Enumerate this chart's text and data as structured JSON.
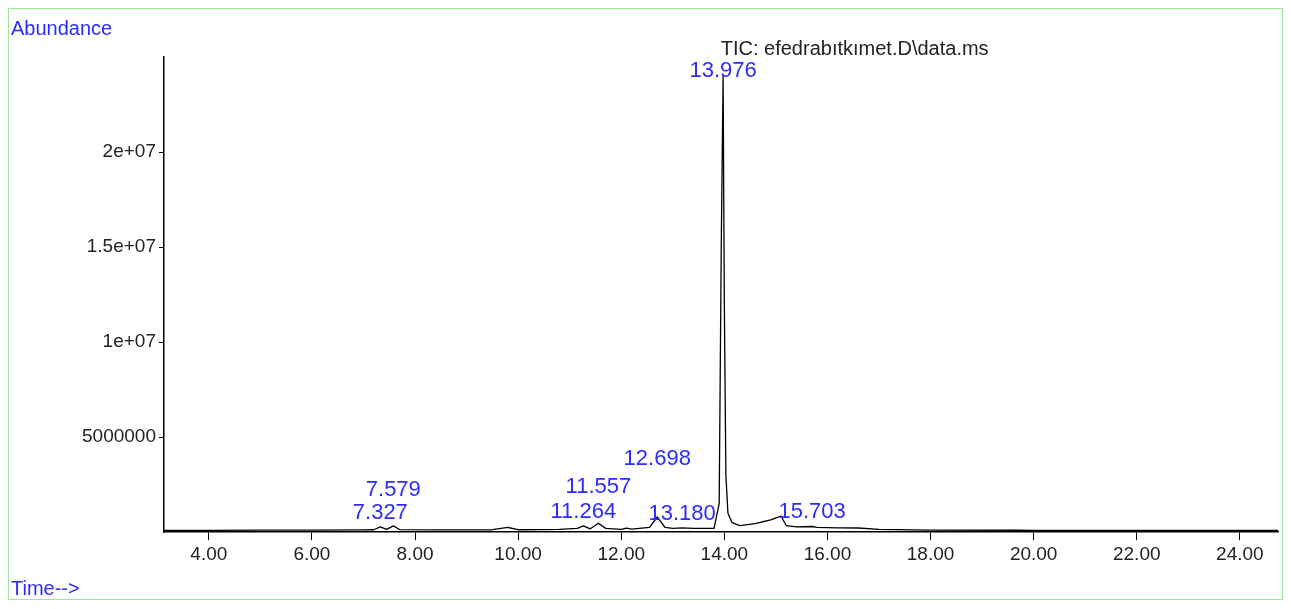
{
  "chart_data": {
    "type": "line",
    "title": "TIC: efedrabıtkımet.D\\data.ms",
    "xlabel": "Time-->",
    "ylabel": "Abundance",
    "x": [
      3.13,
      4.0,
      5.0,
      6.0,
      7.0,
      7.2,
      7.327,
      7.45,
      7.579,
      7.7,
      8.5,
      9.5,
      9.8,
      10.0,
      10.8,
      11.15,
      11.264,
      11.4,
      11.557,
      11.7,
      12.0,
      12.1,
      12.2,
      12.55,
      12.698,
      12.85,
      13.0,
      13.18,
      13.4,
      13.8,
      13.9,
      13.94,
      13.976,
      14.0,
      14.03,
      14.07,
      14.15,
      14.3,
      14.6,
      14.9,
      15.1,
      15.2,
      15.4,
      15.703,
      15.8,
      16.2,
      16.6,
      17.0,
      18.0,
      20.0,
      22.0,
      24.0,
      24.74
    ],
    "series": [
      {
        "color": "#000000",
        "values": [
          100000,
          100000,
          110000,
          110000,
          120000,
          130000,
          280000,
          150000,
          330000,
          140000,
          120000,
          130000,
          250000,
          130000,
          150000,
          200000,
          330000,
          180000,
          470000,
          200000,
          150000,
          220000,
          160000,
          250000,
          800000,
          250000,
          200000,
          230000,
          200000,
          200000,
          1500000,
          15000000,
          24000000,
          12000000,
          3000000,
          1000000,
          500000,
          350000,
          450000,
          650000,
          850000,
          350000,
          280000,
          300000,
          250000,
          230000,
          220000,
          150000,
          110000,
          100000,
          100000,
          100000,
          100000
        ]
      }
    ],
    "xlim": [
      3.13,
      24.74
    ],
    "ylim": [
      0,
      25000000
    ],
    "xticks": [
      {
        "value": 4,
        "label": "4.00"
      },
      {
        "value": 6,
        "label": "6.00"
      },
      {
        "value": 8,
        "label": "8.00"
      },
      {
        "value": 10,
        "label": "10.00"
      },
      {
        "value": 12,
        "label": "12.00"
      },
      {
        "value": 14,
        "label": "14.00"
      },
      {
        "value": 16,
        "label": "16.00"
      },
      {
        "value": 18,
        "label": "18.00"
      },
      {
        "value": 20,
        "label": "20.00"
      },
      {
        "value": 22,
        "label": "22.00"
      },
      {
        "value": 24,
        "label": "24.00"
      }
    ],
    "yticks": [
      5000000,
      {
        "value": 10000000,
        "label": "1e+07"
      },
      {
        "value": 15000000,
        "label": "1.5e+07"
      },
      {
        "value": 20000000,
        "label": "2e+07"
      }
    ],
    "annotations": [
      {
        "text": "7.327",
        "x": 7.327,
        "y": 280000
      },
      {
        "text": "7.579",
        "x": 7.579,
        "y": 330000
      },
      {
        "text": "11.264",
        "x": 11.264,
        "y": 330000
      },
      {
        "text": "11.557",
        "x": 11.557,
        "y": 470000
      },
      {
        "text": "12.698",
        "x": 12.698,
        "y": 800000
      },
      {
        "text": "13.180",
        "x": 13.18,
        "y": 230000
      },
      {
        "text": "13.976",
        "x": 13.976,
        "y": 24000000
      },
      {
        "text": "15.703",
        "x": 15.703,
        "y": 300000
      }
    ],
    "grid": false,
    "legend": false,
    "marker": "none",
    "line_style": "solid"
  }
}
